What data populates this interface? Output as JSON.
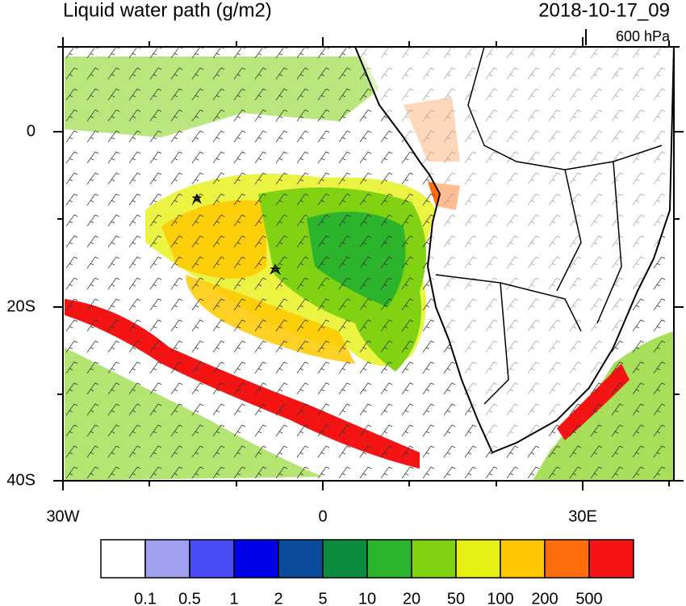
{
  "header": {
    "title": "Liquid water path (g/m2)",
    "valid_time": "2018-10-17_09",
    "level": "600 hPa"
  },
  "y_axis": {
    "labels": [
      "0",
      "20S",
      "40S"
    ]
  },
  "x_axis": {
    "labels": [
      "30W",
      "0",
      "30E"
    ]
  },
  "colorbar": {
    "levels": [
      "0.1",
      "0.5",
      "1",
      "2",
      "5",
      "10",
      "20",
      "50",
      "100",
      "200",
      "500"
    ],
    "colors": [
      "#ffffff",
      "#a0a0f0",
      "#4b4bf5",
      "#0000e6",
      "#0a4b9b",
      "#0a8c3c",
      "#2db42d",
      "#82d214",
      "#e6f014",
      "#ffc800",
      "#ff6e0a",
      "#f51414"
    ]
  }
}
